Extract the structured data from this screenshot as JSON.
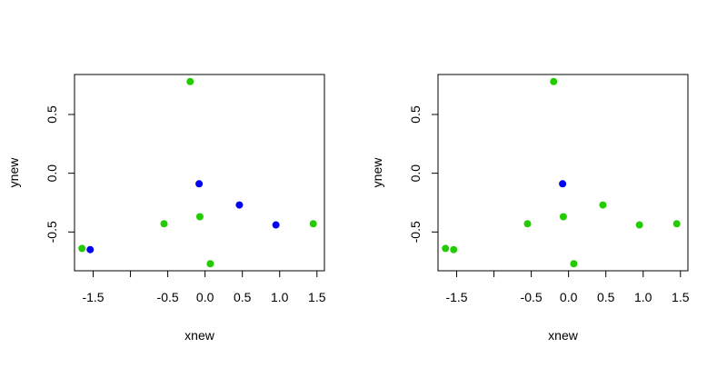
{
  "chart_data": [
    {
      "type": "scatter",
      "xlabel": "xnew",
      "ylabel": "ynew",
      "xlim": [
        -1.75,
        1.6
      ],
      "ylim": [
        -0.83,
        0.84
      ],
      "xticks": [
        -1.5,
        -1.0,
        -0.5,
        0.0,
        0.5,
        1.0,
        1.5
      ],
      "xtick_labels": [
        "-1.5",
        "",
        "-0.5",
        "0.0",
        "0.5",
        "1.0",
        "1.5"
      ],
      "yticks": [
        -0.5,
        0.0,
        0.5
      ],
      "ytick_labels": [
        "-0.5",
        "0.0",
        "0.5"
      ],
      "grid": false,
      "colors": {
        "green": "#22cc00",
        "blue": "#0000ee"
      },
      "points": [
        {
          "x": -1.65,
          "y": -0.64,
          "color": "green"
        },
        {
          "x": -1.54,
          "y": -0.65,
          "color": "blue"
        },
        {
          "x": -0.55,
          "y": -0.43,
          "color": "green"
        },
        {
          "x": -0.2,
          "y": 0.78,
          "color": "green"
        },
        {
          "x": -0.08,
          "y": -0.09,
          "color": "blue"
        },
        {
          "x": -0.07,
          "y": -0.37,
          "color": "green"
        },
        {
          "x": 0.07,
          "y": -0.77,
          "color": "green"
        },
        {
          "x": 0.46,
          "y": -0.27,
          "color": "blue"
        },
        {
          "x": 0.95,
          "y": -0.44,
          "color": "blue"
        },
        {
          "x": 1.45,
          "y": -0.43,
          "color": "green"
        }
      ]
    },
    {
      "type": "scatter",
      "xlabel": "xnew",
      "ylabel": "ynew",
      "xlim": [
        -1.75,
        1.6
      ],
      "ylim": [
        -0.83,
        0.84
      ],
      "xticks": [
        -1.5,
        -1.0,
        -0.5,
        0.0,
        0.5,
        1.0,
        1.5
      ],
      "xtick_labels": [
        "-1.5",
        "",
        "-0.5",
        "0.0",
        "0.5",
        "1.0",
        "1.5"
      ],
      "yticks": [
        -0.5,
        0.0,
        0.5
      ],
      "ytick_labels": [
        "-0.5",
        "0.0",
        "0.5"
      ],
      "grid": false,
      "colors": {
        "green": "#22cc00",
        "blue": "#0000ee"
      },
      "points": [
        {
          "x": -1.65,
          "y": -0.64,
          "color": "green"
        },
        {
          "x": -1.54,
          "y": -0.65,
          "color": "green"
        },
        {
          "x": -0.55,
          "y": -0.43,
          "color": "green"
        },
        {
          "x": -0.2,
          "y": 0.78,
          "color": "green"
        },
        {
          "x": -0.08,
          "y": -0.09,
          "color": "blue"
        },
        {
          "x": -0.07,
          "y": -0.37,
          "color": "green"
        },
        {
          "x": 0.07,
          "y": -0.77,
          "color": "green"
        },
        {
          "x": 0.46,
          "y": -0.27,
          "color": "green"
        },
        {
          "x": 0.95,
          "y": -0.44,
          "color": "green"
        },
        {
          "x": 1.45,
          "y": -0.43,
          "color": "green"
        }
      ]
    }
  ]
}
